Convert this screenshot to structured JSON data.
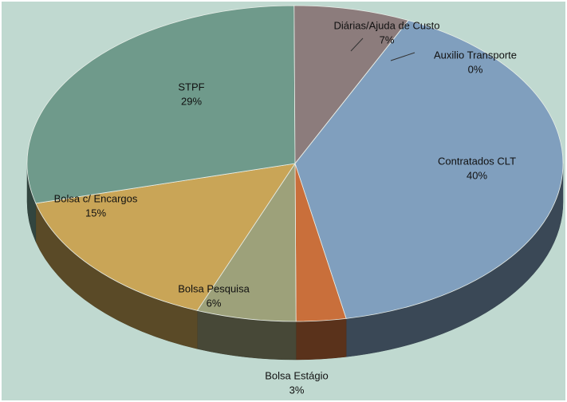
{
  "chart_data": {
    "type": "pie",
    "categories": [
      "Contratados  CLT",
      "Bolsa Estágio",
      "Bolsa Pesquisa",
      "Bolsa c/ Encargos",
      "STPF",
      "Diárias/Ajuda de Custo",
      "Auxilio Transporte"
    ],
    "values": [
      40,
      3,
      6,
      15,
      29,
      7,
      0
    ],
    "value_labels": [
      "40%",
      "3%",
      "6%",
      "15%",
      "29%",
      "7%",
      "0%"
    ],
    "colors": [
      "#809fbe",
      "#c96f3b",
      "#9da17a",
      "#c9a557",
      "#6f9a8b",
      "#8c7c7c",
      "#a3bbd3"
    ]
  }
}
